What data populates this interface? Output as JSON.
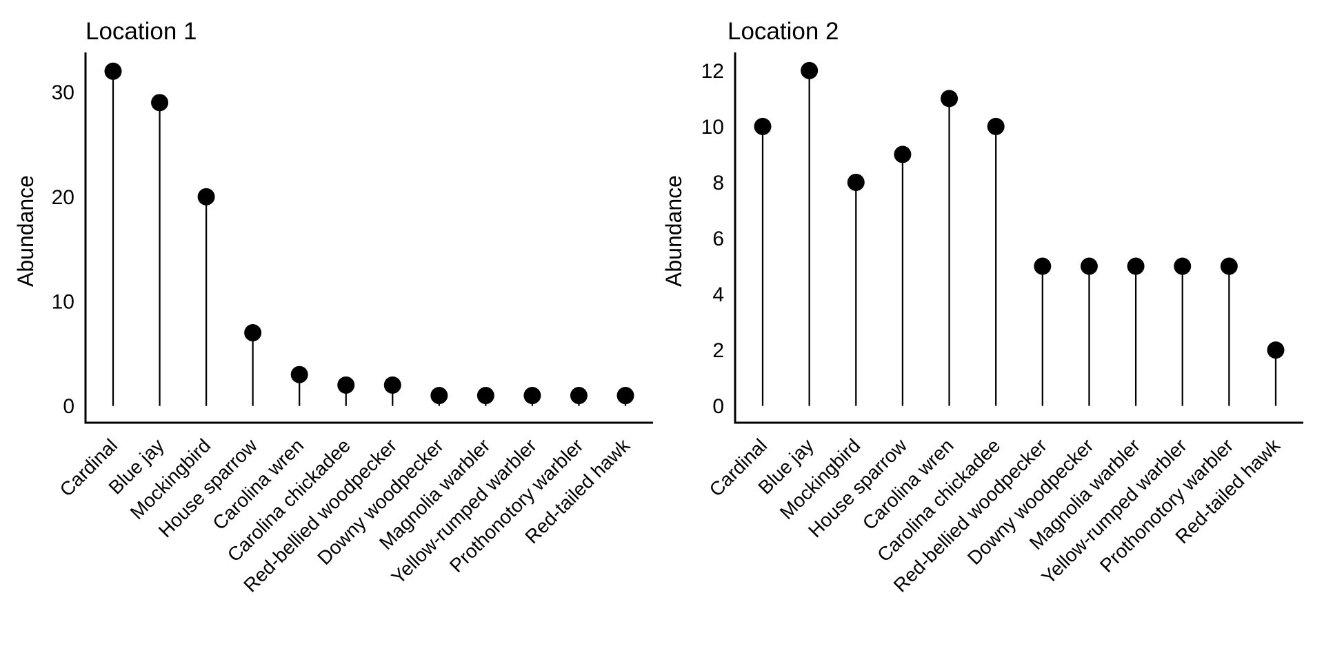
{
  "page": {
    "background_color": "#ffffff",
    "text_color": "#000000",
    "marker_color": "#000000"
  },
  "chart_data": [
    {
      "type": "lollipop",
      "title": "Location 1",
      "xlabel": "",
      "ylabel": "Abundance",
      "categories": [
        "Cardinal",
        "Blue jay",
        "Mockingbird",
        "House sparrow",
        "Carolina wren",
        "Carolina chickadee",
        "Red-bellied woodpecker",
        "Downy woodpecker",
        "Magnolia warbler",
        "Yellow-rumped warbler",
        "Prothonotory warbler",
        "Red-tailed hawk"
      ],
      "values": [
        32,
        29,
        20,
        7,
        3,
        2,
        2,
        1,
        1,
        1,
        1,
        1
      ],
      "yticks": [
        0,
        10,
        20,
        30
      ],
      "ylim": [
        -1.6,
        33.8
      ],
      "grid": false,
      "legend": false,
      "tick_label_rotation_deg": 45
    },
    {
      "type": "lollipop",
      "title": "Location 2",
      "xlabel": "",
      "ylabel": "Abundance",
      "categories": [
        "Cardinal",
        "Blue jay",
        "Mockingbird",
        "House sparrow",
        "Carolina wren",
        "Carolina chickadee",
        "Red-bellied woodpecker",
        "Downy woodpecker",
        "Magnolia warbler",
        "Yellow-rumped warbler",
        "Prothonotory warbler",
        "Red-tailed hawk"
      ],
      "values": [
        10,
        12,
        8,
        9,
        11,
        10,
        5,
        5,
        5,
        5,
        5,
        2
      ],
      "yticks": [
        0,
        2,
        4,
        6,
        8,
        10,
        12
      ],
      "ylim": [
        -0.6,
        12.65
      ],
      "grid": false,
      "legend": false,
      "tick_label_rotation_deg": 45
    }
  ]
}
